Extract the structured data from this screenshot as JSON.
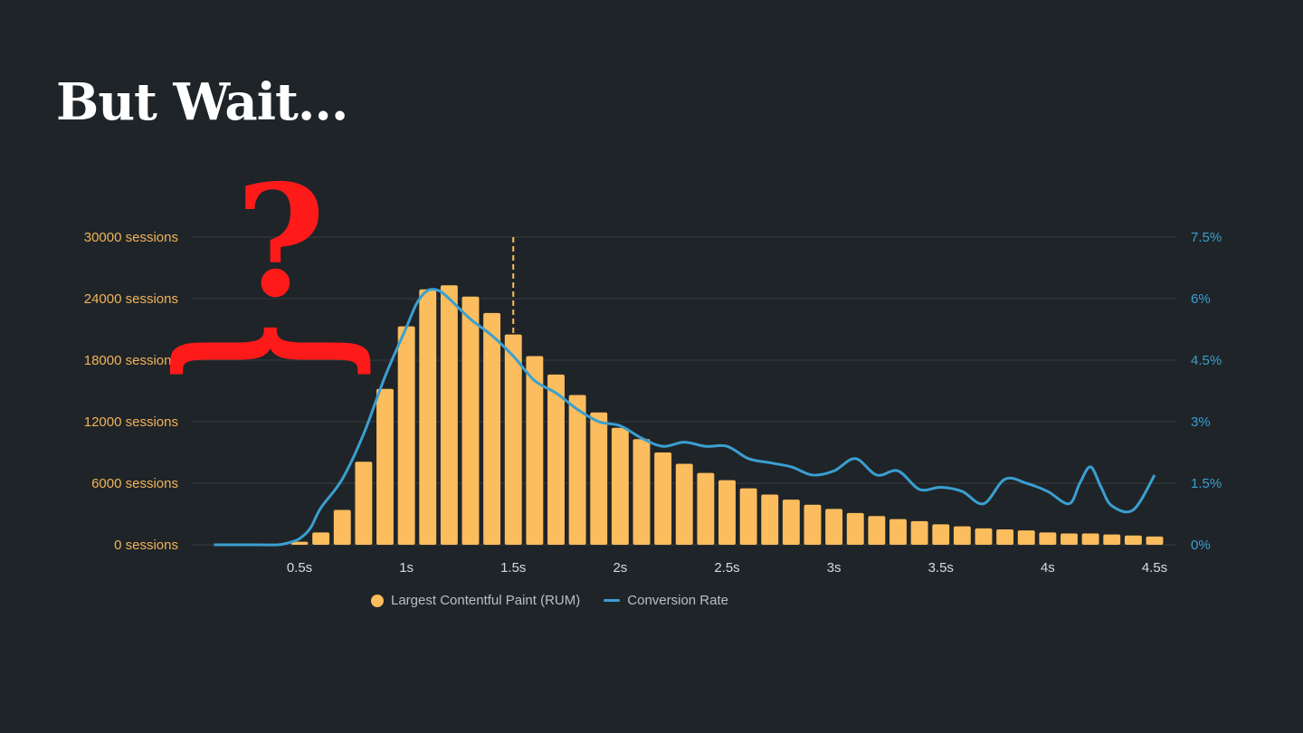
{
  "slide": {
    "title": "But Wait..."
  },
  "annotation": {
    "question_mark": "?",
    "brace": "{"
  },
  "legend": {
    "bars_label": "Largest Contentful Paint (RUM)",
    "line_label": "Conversion Rate"
  },
  "colors": {
    "background": "#1f2428",
    "bars": "#fbbd5d",
    "line": "#3a9fd1",
    "left_axis": "#f0b35a",
    "right_axis": "#3a9fd1",
    "x_axis": "#d6dadd",
    "grid": "#363c41",
    "annotation": "#ff1a1a"
  },
  "chart_data": {
    "type": "bar",
    "x_range": [
      0,
      4.5
    ],
    "y_left": {
      "range": [
        0,
        30000
      ],
      "ticks": [
        0,
        6000,
        12000,
        18000,
        24000,
        30000
      ],
      "tick_labels": [
        "0 sessions",
        "6000 sessions",
        "12000 sessions",
        "18000 sessions",
        "24000 sessions",
        "30000 sessions"
      ]
    },
    "y_right": {
      "range": [
        0,
        7.5
      ],
      "ticks": [
        0,
        1.5,
        3,
        4.5,
        6,
        7.5
      ],
      "tick_labels": [
        "0%",
        "1.5%",
        "3%",
        "4.5%",
        "6%",
        "7.5%"
      ]
    },
    "x_ticks": [
      0.5,
      1,
      1.5,
      2,
      2.5,
      3,
      3.5,
      4,
      4.5
    ],
    "x_tick_labels": [
      "0.5s",
      "1s",
      "1.5s",
      "2s",
      "2.5s",
      "3s",
      "3.5s",
      "4s",
      "4.5s"
    ],
    "marker_x": 1.5,
    "grid": true,
    "legend_position": "bottom-center",
    "series": [
      {
        "name": "Largest Contentful Paint (RUM)",
        "type": "bar",
        "axis": "left",
        "x": [
          0.1,
          0.2,
          0.3,
          0.4,
          0.5,
          0.6,
          0.7,
          0.8,
          0.9,
          1.0,
          1.1,
          1.2,
          1.3,
          1.4,
          1.5,
          1.6,
          1.7,
          1.8,
          1.9,
          2.0,
          2.1,
          2.2,
          2.3,
          2.4,
          2.5,
          2.6,
          2.7,
          2.8,
          2.9,
          3.0,
          3.1,
          3.2,
          3.3,
          3.4,
          3.5,
          3.6,
          3.7,
          3.8,
          3.9,
          4.0,
          4.1,
          4.2,
          4.3,
          4.4,
          4.5
        ],
        "values": [
          0,
          0,
          0,
          100,
          300,
          1200,
          3400,
          8100,
          15200,
          21300,
          24900,
          25300,
          24200,
          22600,
          20500,
          18400,
          16600,
          14600,
          12900,
          11400,
          10300,
          9000,
          7900,
          7000,
          6300,
          5500,
          4900,
          4400,
          3900,
          3500,
          3100,
          2800,
          2500,
          2300,
          2000,
          1800,
          1600,
          1500,
          1400,
          1200,
          1100,
          1100,
          1000,
          900,
          800
        ]
      },
      {
        "name": "Conversion Rate",
        "type": "line",
        "axis": "right",
        "x": [
          0.1,
          0.2,
          0.3,
          0.4,
          0.45,
          0.5,
          0.55,
          0.6,
          0.7,
          0.8,
          0.9,
          1.0,
          1.05,
          1.1,
          1.15,
          1.2,
          1.3,
          1.4,
          1.5,
          1.6,
          1.7,
          1.8,
          1.9,
          2.0,
          2.1,
          2.2,
          2.3,
          2.4,
          2.5,
          2.6,
          2.7,
          2.8,
          2.9,
          3.0,
          3.1,
          3.2,
          3.3,
          3.4,
          3.5,
          3.6,
          3.7,
          3.8,
          3.9,
          4.0,
          4.1,
          4.15,
          4.2,
          4.25,
          4.3,
          4.4,
          4.5
        ],
        "values": [
          0,
          0,
          0,
          0,
          0.05,
          0.15,
          0.4,
          0.9,
          1.6,
          2.7,
          4.1,
          5.3,
          5.9,
          6.2,
          6.2,
          6.0,
          5.5,
          5.1,
          4.6,
          4.0,
          3.7,
          3.3,
          3.0,
          2.9,
          2.6,
          2.4,
          2.5,
          2.4,
          2.4,
          2.1,
          2.0,
          1.9,
          1.7,
          1.8,
          2.1,
          1.7,
          1.8,
          1.35,
          1.4,
          1.3,
          1.0,
          1.6,
          1.5,
          1.3,
          1.0,
          1.5,
          1.9,
          1.4,
          0.95,
          0.85,
          1.7
        ]
      }
    ]
  }
}
